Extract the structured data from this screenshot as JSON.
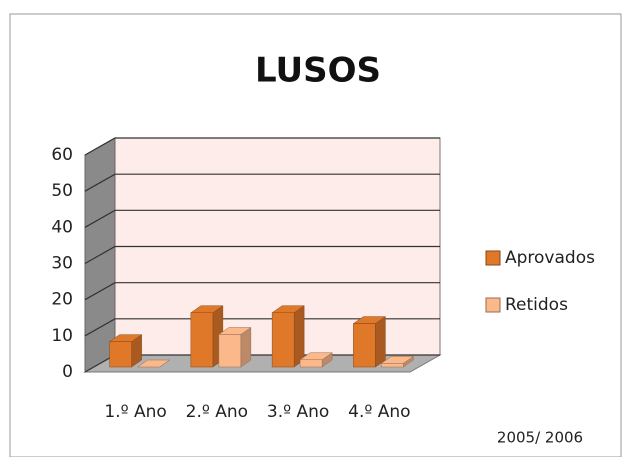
{
  "chart_data": {
    "type": "bar3d",
    "title": "LUSOS",
    "categories": [
      "1.º Ano",
      "2.º Ano",
      "3.º Ano",
      "4.º Ano"
    ],
    "series": [
      {
        "name": "Aprovados",
        "color": "#e0782a",
        "values": [
          7,
          15,
          15,
          12
        ]
      },
      {
        "name": "Retidos",
        "color": "#fbb88a",
        "values": [
          0,
          9,
          2,
          1
        ]
      }
    ],
    "ylim": [
      0,
      60
    ],
    "yticks": [
      0,
      10,
      20,
      30,
      40,
      50,
      60
    ],
    "grid": true,
    "legend": "right",
    "annotation": "2005/ 2006"
  }
}
